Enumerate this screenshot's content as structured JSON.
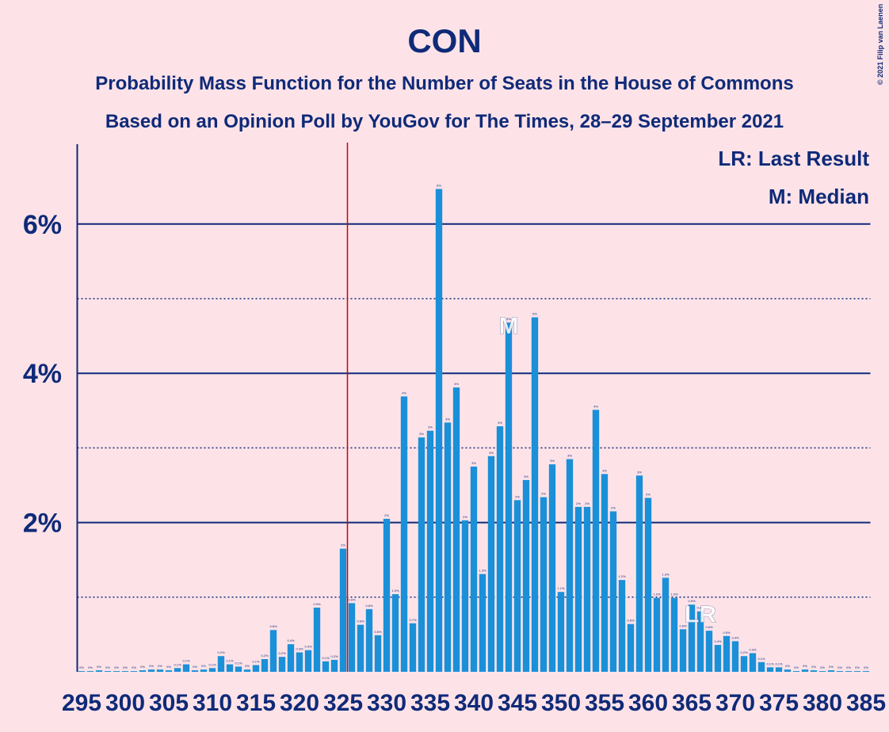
{
  "chart_data": {
    "type": "bar",
    "title": "CON",
    "subtitle": [
      "Probability Mass Function for the Number of Seats in the House of Commons",
      "Based on an Opinion Poll by YouGov for The Times, 28–29 September 2021"
    ],
    "legend_text": [
      "LR: Last Result",
      "M: Median"
    ],
    "marker_labels": {
      "median": "M",
      "last_result": "LR"
    },
    "median_seat": 344,
    "last_result_seat": 366,
    "threshold": 326,
    "credit": "© 2021 Filip van Laenen",
    "color": "#1a90d8",
    "threshold_color": "#cc0000",
    "grid": true,
    "x": [
      295,
      296,
      297,
      298,
      299,
      300,
      301,
      302,
      303,
      304,
      305,
      306,
      307,
      308,
      309,
      310,
      311,
      312,
      313,
      314,
      315,
      316,
      317,
      318,
      319,
      320,
      321,
      322,
      323,
      324,
      325,
      326,
      327,
      328,
      329,
      330,
      331,
      332,
      333,
      334,
      335,
      336,
      337,
      338,
      339,
      340,
      341,
      342,
      343,
      344,
      345,
      346,
      347,
      348,
      349,
      350,
      351,
      352,
      353,
      354,
      355,
      356,
      357,
      358,
      359,
      360,
      361,
      362,
      363,
      364,
      365,
      366,
      367,
      368,
      369,
      370,
      371,
      372,
      373,
      374,
      375,
      376,
      377,
      378,
      379,
      380,
      381,
      382,
      383,
      384,
      385
    ],
    "values": [
      0.01,
      0.01,
      0.02,
      0.01,
      0.01,
      0.01,
      0.01,
      0.02,
      0.03,
      0.03,
      0.02,
      0.05,
      0.1,
      0.02,
      0.03,
      0.05,
      0.21,
      0.1,
      0.07,
      0.03,
      0.09,
      0.17,
      0.56,
      0.2,
      0.37,
      0.26,
      0.29,
      0.86,
      0.14,
      0.16,
      1.65,
      0.92,
      0.63,
      0.84,
      0.49,
      2.05,
      1.04,
      3.69,
      0.65,
      3.14,
      3.23,
      6.47,
      3.34,
      3.81,
      2.03,
      2.75,
      1.31,
      2.89,
      3.29,
      4.68,
      2.3,
      2.57,
      4.75,
      2.34,
      2.78,
      1.07,
      2.85,
      2.21,
      2.21,
      3.51,
      2.65,
      2.15,
      1.23,
      0.64,
      2.63,
      2.33,
      0.99,
      1.26,
      0.99,
      0.57,
      0.9,
      0.81,
      0.55,
      0.36,
      0.48,
      0.41,
      0.21,
      0.25,
      0.13,
      0.06,
      0.06,
      0.03,
      0.01,
      0.03,
      0.02,
      0.01,
      0.02,
      0.01,
      0.01,
      0.01,
      0.01
    ],
    "value_labels": [
      "0%",
      "0%",
      "0%",
      "0%",
      "0%",
      "0%",
      "0%",
      "0%",
      "0%",
      "0%",
      "0%",
      "0.1%",
      "0.1%",
      "0%",
      "0%",
      "0.1%",
      "0.2%",
      "0.1%",
      "0.1%",
      "0%",
      "0.1%",
      "0.2%",
      "0.6%",
      "0.2%",
      "0.4%",
      "0.3%",
      "0.3%",
      "0.9%",
      "0.1%",
      "0.2%",
      "2%",
      "0.9%",
      "0.6%",
      "0.8%",
      "0.5%",
      "2%",
      "1.0%",
      "4%",
      "0.7%",
      "3%",
      "3%",
      "6%",
      "3%",
      "4%",
      "2%",
      "3%",
      "1.3%",
      "3%",
      "3%",
      "5%",
      "2%",
      "3%",
      "5%",
      "2%",
      "3%",
      "1.1%",
      "3%",
      "2%",
      "2%",
      "4%",
      "3%",
      "2%",
      "1.2%",
      "0.6%",
      "3%",
      "2%",
      "1.0%",
      "1.3%",
      "1.0%",
      "0.6%",
      "0.9%",
      "0.8%",
      "0.6%",
      "0.4%",
      "0.5%",
      "0.4%",
      "0.2%",
      "0.3%",
      "0.1%",
      "0.1%",
      "0.1%",
      "0%",
      "0%",
      "0%",
      "0%",
      "0%",
      "0%",
      "0%",
      "0%",
      "0%",
      "0%"
    ],
    "xlim": [
      294.5,
      385.5
    ],
    "xticks": [
      295,
      300,
      305,
      310,
      315,
      320,
      325,
      330,
      335,
      340,
      345,
      350,
      355,
      360,
      365,
      370,
      375,
      380,
      385
    ],
    "ylim": [
      0,
      7
    ],
    "yticks": [
      {
        "value": 2,
        "label": "2%"
      },
      {
        "value": 4,
        "label": "4%"
      },
      {
        "value": 6,
        "label": "6%"
      }
    ],
    "minor_yticks": [
      1,
      3,
      5
    ]
  }
}
